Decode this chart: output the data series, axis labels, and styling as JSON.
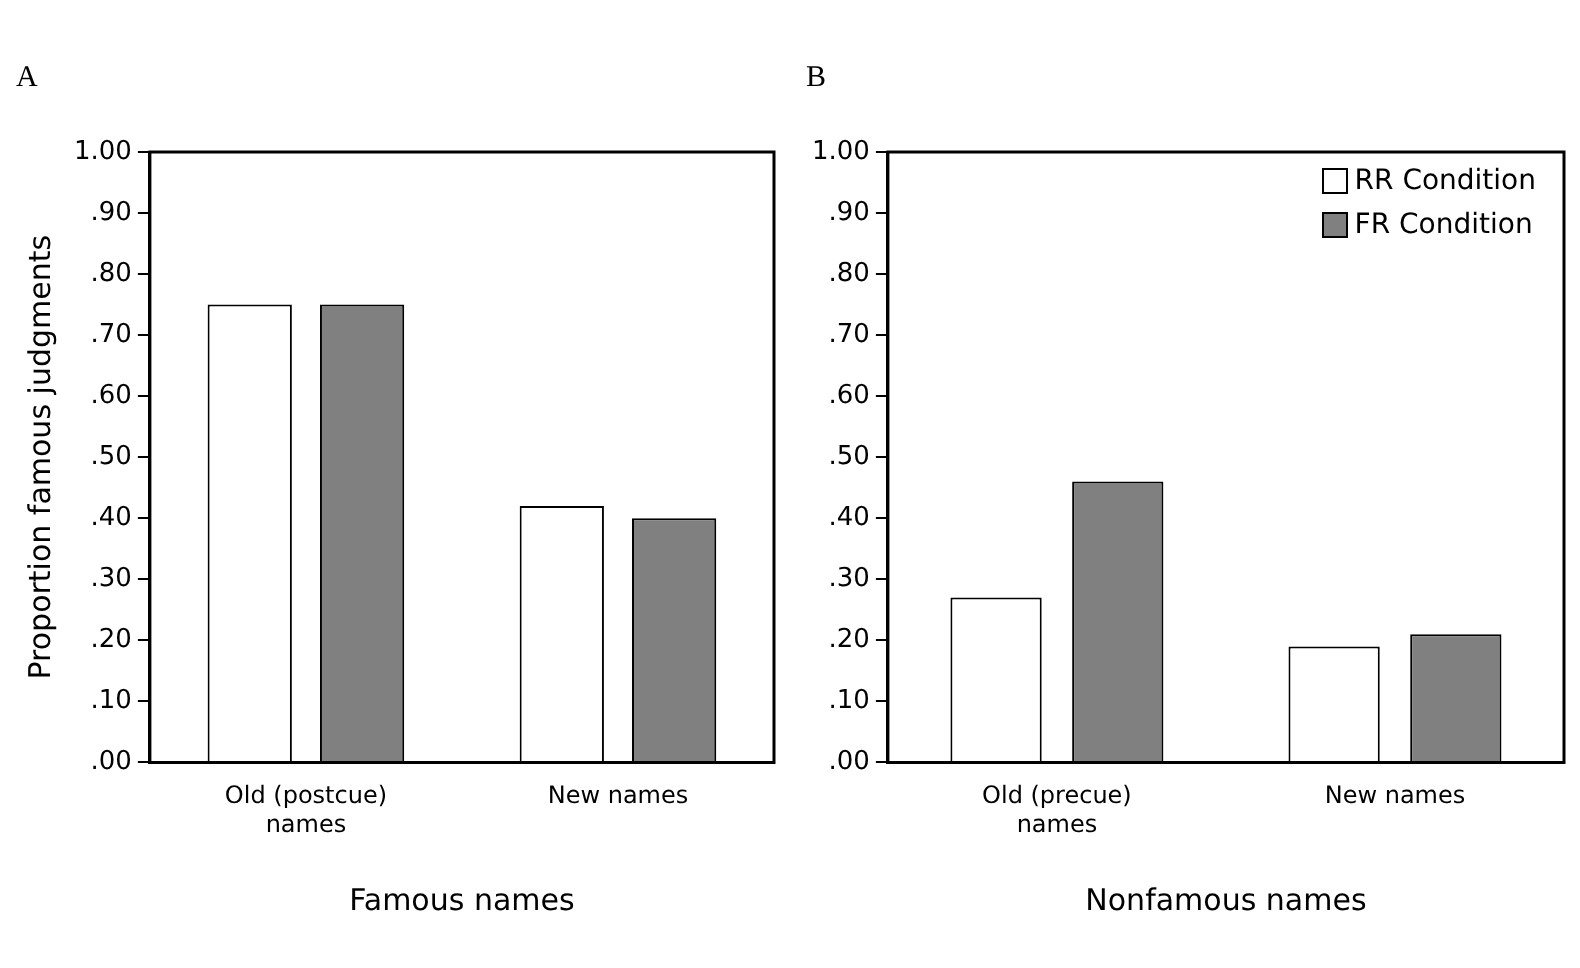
{
  "chart_data": [
    {
      "type": "bar",
      "title": "A",
      "xlabel": "Famous names",
      "ylabel": "Proportion famous judgments",
      "categories": [
        "Old (postcue) names",
        "New names"
      ],
      "series": [
        {
          "color": "#ffffff",
          "values": [
            0.75,
            0.42
          ]
        },
        {
          "color": "#808080",
          "values": [
            0.75,
            0.4
          ]
        }
      ],
      "ylim": [
        0,
        1
      ],
      "yticks": [
        {
          "value": 0,
          "label": ".00"
        },
        {
          "value": 0.1,
          "label": ".10"
        },
        {
          "value": 0.2,
          "label": ".20"
        },
        {
          "value": 0.3,
          "label": ".30"
        },
        {
          "value": 0.4,
          "label": ".40"
        },
        {
          "value": 0.5,
          "label": ".50"
        },
        {
          "value": 0.6,
          "label": ".60"
        },
        {
          "value": 0.7,
          "label": ".70"
        },
        {
          "value": 0.8,
          "label": ".80"
        },
        {
          "value": 0.9,
          "label": ".90"
        },
        {
          "value": 1,
          "label": "1.00"
        }
      ],
      "grid": false,
      "legend": false
    },
    {
      "type": "bar",
      "title": "B",
      "xlabel": "Nonfamous names",
      "categories": [
        "Old (precue) names",
        "New names"
      ],
      "series": [
        {
          "name": "RR Condition",
          "color": "#ffffff",
          "values": [
            0.27,
            0.19
          ]
        },
        {
          "name": "FR Condition",
          "color": "#808080",
          "values": [
            0.46,
            0.21
          ]
        }
      ],
      "ylim": [
        0,
        1
      ],
      "yticks": [
        {
          "value": 0,
          "label": ".00"
        },
        {
          "value": 0.1,
          "label": ".10"
        },
        {
          "value": 0.2,
          "label": ".20"
        },
        {
          "value": 0.3,
          "label": ".30"
        },
        {
          "value": 0.4,
          "label": ".40"
        },
        {
          "value": 0.5,
          "label": ".50"
        },
        {
          "value": 0.6,
          "label": ".60"
        },
        {
          "value": 0.7,
          "label": ".70"
        },
        {
          "value": 0.8,
          "label": ".80"
        },
        {
          "value": 0.9,
          "label": ".90"
        },
        {
          "value": 1,
          "label": "1.00"
        }
      ],
      "grid": false,
      "legend": "top right"
    }
  ]
}
